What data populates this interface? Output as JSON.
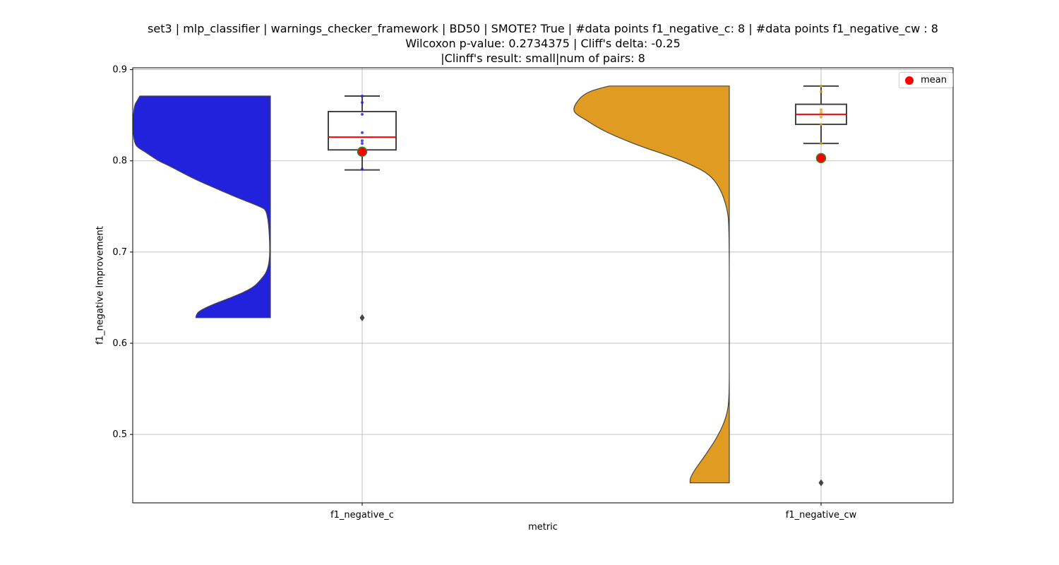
{
  "chart_data": {
    "type": "violin",
    "title_lines": [
      "set3 | mlp_classifier | warnings_checker_framework | BD50 | SMOTE? True | #data points f1_negative_c: 8 | #data points f1_negative_cw : 8",
      "Wilcoxon p-value: 0.2734375 | Cliff's delta: -0.25",
      "|Clinff's result: small|num of pairs: 8"
    ],
    "xlabel": "metric",
    "ylabel": "f1_negative Improvement",
    "ylim": [
      0.425,
      0.902
    ],
    "yticks": [
      0.5,
      0.6,
      0.7,
      0.8,
      0.9
    ],
    "ytick_labels": [
      "0.5",
      "0.6",
      "0.7",
      "0.8",
      "0.9"
    ],
    "grid": true,
    "legend": {
      "position": "top-right",
      "entries": [
        {
          "label": "mean",
          "color": "#ff0000"
        }
      ]
    },
    "categories": [
      "f1_negative_c",
      "f1_negative_cw"
    ],
    "series": [
      {
        "category": "f1_negative_c",
        "color": "#2222dd",
        "points": [
          0.871,
          0.864,
          0.851,
          0.831,
          0.822,
          0.819,
          0.791,
          0.628
        ],
        "box": {
          "whisker_low": 0.79,
          "q1": 0.812,
          "median": 0.826,
          "q3": 0.854,
          "whisker_high": 0.871
        },
        "outliers": [
          0.628
        ],
        "mean": 0.81,
        "density": [
          [
            0.871,
            1.0
          ],
          [
            0.866,
            1.02
          ],
          [
            0.861,
            1.04
          ],
          [
            0.85,
            1.05
          ],
          [
            0.84,
            1.05
          ],
          [
            0.83,
            1.05
          ],
          [
            0.82,
            1.04
          ],
          [
            0.815,
            1.02
          ],
          [
            0.81,
            0.96
          ],
          [
            0.8,
            0.86
          ],
          [
            0.795,
            0.78
          ],
          [
            0.785,
            0.65
          ],
          [
            0.778,
            0.55
          ],
          [
            0.77,
            0.42
          ],
          [
            0.76,
            0.26
          ],
          [
            0.75,
            0.08
          ],
          [
            0.745,
            0.02
          ],
          [
            0.7,
            0.0
          ],
          [
            0.68,
            0.02
          ],
          [
            0.67,
            0.07
          ],
          [
            0.66,
            0.14
          ],
          [
            0.65,
            0.3
          ],
          [
            0.642,
            0.45
          ],
          [
            0.635,
            0.55
          ],
          [
            0.63,
            0.57
          ],
          [
            0.628,
            0.57
          ]
        ]
      },
      {
        "category": "f1_negative_cw",
        "color": "#e09c22",
        "points": [
          0.882,
          0.876,
          0.856,
          0.853,
          0.848,
          0.84,
          0.819,
          0.447
        ],
        "box": {
          "whisker_low": 0.819,
          "q1": 0.84,
          "median": 0.851,
          "q3": 0.862,
          "whisker_high": 0.882
        },
        "outliers": [
          0.447
        ],
        "mean": 0.803,
        "density": [
          [
            0.882,
            0.92
          ],
          [
            0.878,
            1.04
          ],
          [
            0.872,
            1.12
          ],
          [
            0.866,
            1.16
          ],
          [
            0.859,
            1.19
          ],
          [
            0.854,
            1.19
          ],
          [
            0.85,
            1.16
          ],
          [
            0.845,
            1.1
          ],
          [
            0.835,
            0.99
          ],
          [
            0.825,
            0.84
          ],
          [
            0.815,
            0.66
          ],
          [
            0.805,
            0.45
          ],
          [
            0.795,
            0.28
          ],
          [
            0.785,
            0.15
          ],
          [
            0.77,
            0.07
          ],
          [
            0.75,
            0.02
          ],
          [
            0.73,
            0.0
          ],
          [
            0.6,
            0.0
          ],
          [
            0.54,
            0.0
          ],
          [
            0.52,
            0.02
          ],
          [
            0.5,
            0.08
          ],
          [
            0.48,
            0.17
          ],
          [
            0.47,
            0.22
          ],
          [
            0.46,
            0.27
          ],
          [
            0.452,
            0.3
          ],
          [
            0.447,
            0.3
          ]
        ]
      }
    ]
  }
}
